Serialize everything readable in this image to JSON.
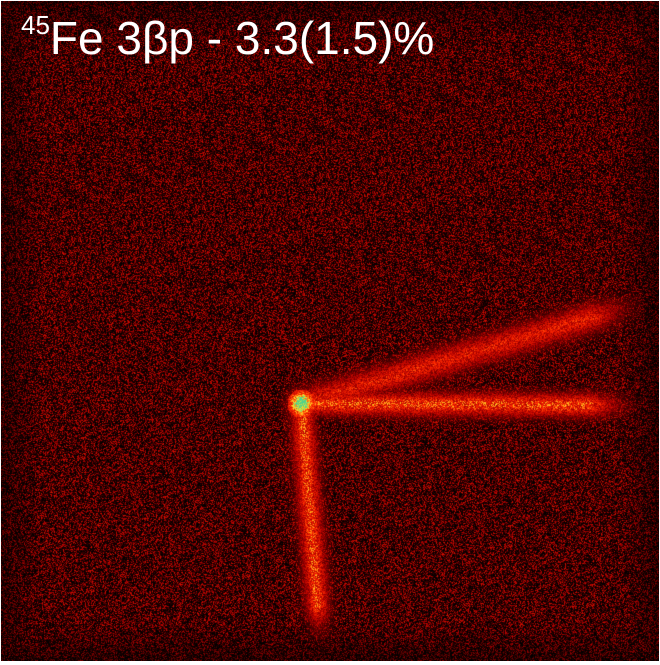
{
  "image_label": {
    "mass_number": "45",
    "text": "Fe 3βp - 3.3(1.5)%"
  },
  "colors": {
    "background": "#000000",
    "noise": "#8a0e08",
    "track": "#ff2a10",
    "hot": "#ffe040",
    "core": "#4dd08a",
    "label_text": "#ffffff"
  }
}
